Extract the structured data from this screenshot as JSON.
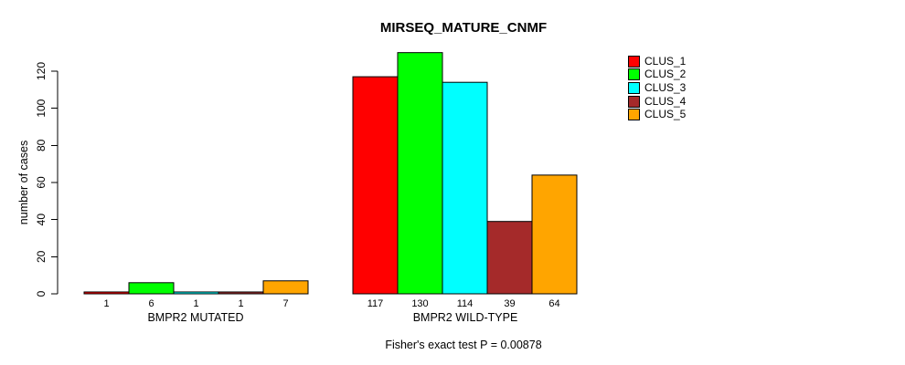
{
  "chart_data": {
    "type": "bar",
    "title": "MIRSEQ_MATURE_CNMF",
    "ylabel": "number of cases",
    "xlabel": "",
    "annotation": "Fisher's exact test P = 0.00878",
    "categories": [
      "BMPR2 MUTATED",
      "BMPR2 WILD-TYPE"
    ],
    "series": [
      {
        "name": "CLUS_1",
        "color": "#ff0000",
        "values": [
          1,
          117
        ]
      },
      {
        "name": "CLUS_2",
        "color": "#00ff00",
        "values": [
          6,
          130
        ]
      },
      {
        "name": "CLUS_3",
        "color": "#00ffff",
        "values": [
          1,
          114
        ]
      },
      {
        "name": "CLUS_4",
        "color": "#a52a2a",
        "values": [
          1,
          39
        ]
      },
      {
        "name": "CLUS_5",
        "color": "#ffa500",
        "values": [
          7,
          64
        ]
      }
    ],
    "yticks": [
      0,
      20,
      40,
      60,
      80,
      100,
      120
    ],
    "ylim": [
      0,
      133
    ],
    "grid": false,
    "bar_value_labels": true,
    "bar_border_color": "#000000",
    "background": "#ffffff",
    "legend_position": "right-outside"
  }
}
